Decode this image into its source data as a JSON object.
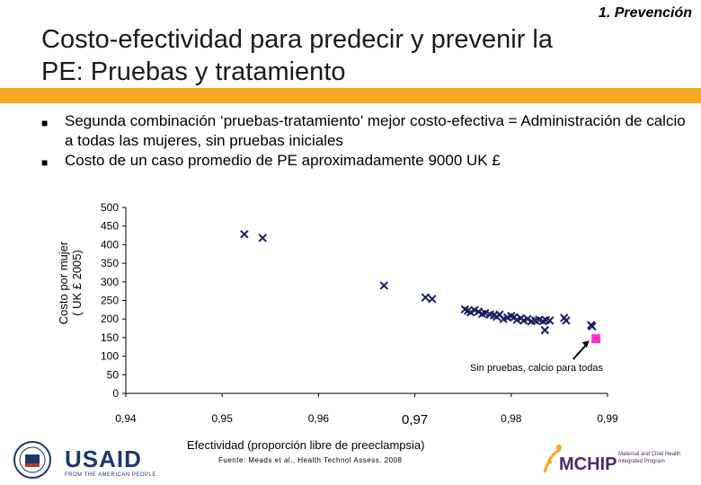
{
  "header": {
    "section_tag": "1. Prevención",
    "title_line1": "Costo-efectividad para predecir y prevenir la",
    "title_line2": "PE: Pruebas y tratamiento"
  },
  "bullets": [
    "Segunda combinación ‘pruebas-tratamiento' mejor costo-efectiva = Administración de calcio a todas las mujeres, sin pruebas iniciales",
    "Costo de un caso promedio de PE aproximadamente 9000 UK £"
  ],
  "footer": {
    "source": "Fuente: Meads et al., Health Technol Assess. 2008",
    "usaid_logo_text": "USAID",
    "usaid_tagline": "FROM THE AMERICAN PEOPLE",
    "mchip_logo_text": "MCHIP",
    "mchip_tagline": "Maternal and Child Health Integrated Program"
  },
  "colors": {
    "accent_bar": "#f5a623",
    "marker": "#1b1f5e",
    "highlight": "#ff33cc"
  },
  "chart_data": {
    "type": "scatter",
    "xlabel": "Efectividad (proporción libre de preeclampsia)",
    "ylabel_line1": "Costo por mujer",
    "ylabel_line2": "( UK £ 2005)",
    "xlim": [
      0.94,
      0.99
    ],
    "ylim": [
      0,
      500
    ],
    "x_ticks": [
      "0,94",
      "0,95",
      "0,96",
      "0,97",
      "0,98",
      "0,99"
    ],
    "x_tick_values": [
      0.94,
      0.95,
      0.96,
      0.97,
      0.98,
      0.99
    ],
    "y_ticks": [
      "500",
      "450",
      "400",
      "350",
      "300",
      "250",
      "200",
      "150",
      "100",
      "50",
      "0"
    ],
    "y_tick_values": [
      500,
      450,
      400,
      350,
      300,
      250,
      200,
      150,
      100,
      50,
      0
    ],
    "series": [
      {
        "marker": "x",
        "x": [
          0.9523,
          0.9542,
          0.9668,
          0.9711,
          0.9718,
          0.9752,
          0.9755,
          0.9758,
          0.9762,
          0.9766,
          0.977,
          0.9773,
          0.9778,
          0.9782,
          0.9785,
          0.9788,
          0.9792,
          0.9796,
          0.98,
          0.9803,
          0.9806,
          0.981,
          0.9813,
          0.9817,
          0.9821,
          0.9825,
          0.9829,
          0.9833,
          0.9836,
          0.984,
          0.9835,
          0.9855,
          0.9857,
          0.9883,
          0.9884
        ],
        "y": [
          428,
          418,
          290,
          258,
          254,
          226,
          222,
          218,
          224,
          220,
          214,
          216,
          212,
          210,
          206,
          212,
          200,
          204,
          208,
          205,
          198,
          202,
          196,
          200,
          194,
          196,
          198,
          194,
          197,
          196,
          170,
          203,
          196,
          184,
          180
        ]
      },
      {
        "marker": "square",
        "x": [
          0.9888
        ],
        "y": [
          147
        ]
      }
    ],
    "annotation": {
      "text": "Sin pruebas, calcio para todas",
      "x": 0.9883,
      "y": 147
    }
  }
}
